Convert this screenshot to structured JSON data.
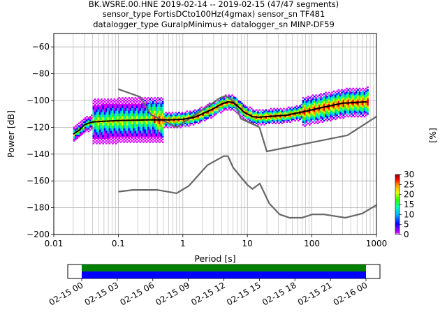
{
  "chart_data": [
    {
      "type": "heatmap",
      "title": [
        "BK.WSRE.00.HNE   2019-02-14 -- 2019-02-15  (47/47 segments)",
        "sensor_type FortisDCto100Hz(4gmax) sensor_sn TF481",
        "datalogger_type GuralpMinimus+ datalogger_sn MINP-DF59"
      ],
      "xlabel": "Period [s]",
      "ylabel": "Power [dB]",
      "xscale": "log",
      "xlim": [
        0.01,
        1000
      ],
      "ylim": [
        -200,
        -50
      ],
      "xticks": [
        0.01,
        0.1,
        1,
        10,
        100,
        1000
      ],
      "xtick_labels": [
        "0.01",
        "0.1",
        "1",
        "10",
        "100",
        "1000"
      ],
      "yticks": [
        -200,
        -180,
        -160,
        -140,
        -120,
        -100,
        -80,
        -60
      ],
      "ytick_labels": [
        "−200",
        "−180",
        "−160",
        "−140",
        "−120",
        "−100",
        "−80",
        "−60"
      ],
      "grid": true,
      "colorbar": {
        "label": "[%]",
        "range": [
          0,
          30
        ],
        "ticks": [
          0,
          5,
          10,
          15,
          20,
          25,
          30
        ],
        "tick_labels": [
          "0",
          "5",
          "10",
          "15",
          "20",
          "25",
          "30"
        ],
        "colormap": [
          "#ffffff",
          "#d400ff",
          "#0000ff",
          "#00b4ff",
          "#00ffb0",
          "#33ff00",
          "#e6ff00",
          "#ff9900",
          "#ff0000",
          "#8b0000"
        ]
      },
      "series": [
        {
          "role": "model-high",
          "color": "#666666",
          "x": [
            0.1,
            0.22,
            0.32,
            0.8,
            3.8,
            4.6,
            6.3,
            7.9,
            15.4,
            20,
            354.8,
            1000
          ],
          "y": [
            -91.5,
            -97.4,
            -110.5,
            -120,
            -98,
            -96.5,
            -101,
            -113.5,
            -120,
            -138,
            -126,
            -112
          ]
        },
        {
          "role": "model-low",
          "color": "#666666",
          "x": [
            0.1,
            0.17,
            0.4,
            0.8,
            1.24,
            2.4,
            4.3,
            5,
            6,
            10,
            12,
            15.6,
            21.9,
            31.6,
            45,
            70,
            101,
            154,
            328,
            600,
            1000
          ],
          "y": [
            -168,
            -166.7,
            -166.7,
            -169.2,
            -163.7,
            -148.3,
            -141.5,
            -141.5,
            -150,
            -163,
            -166,
            -162,
            -177,
            -185,
            -187.5,
            -187.5,
            -185,
            -185,
            -187.5,
            -184.4,
            -178
          ]
        },
        {
          "role": "mode",
          "color": "#000000",
          "x": [
            0.02,
            0.025,
            0.03,
            0.04,
            0.06,
            0.1,
            0.15,
            0.3,
            0.6,
            1,
            1.5,
            2,
            3,
            4,
            5,
            6,
            7,
            9,
            12,
            15,
            20,
            40,
            80,
            150,
            300,
            700
          ],
          "y": [
            -125,
            -122,
            -118,
            -116,
            -115.5,
            -115,
            -114.8,
            -114.5,
            -114.5,
            -114,
            -112.5,
            -110,
            -106,
            -102.5,
            -101,
            -101.5,
            -104,
            -109,
            -112,
            -112.5,
            -112,
            -111,
            -108,
            -105,
            -102,
            -101
          ]
        }
      ]
    },
    {
      "type": "timeline",
      "xlim": [
        "02-15 00",
        "02-16 00"
      ],
      "tick_labels": [
        "02-15 00",
        "02-15 03",
        "02-15 06",
        "02-15 09",
        "02-15 12",
        "02-15 15",
        "02-15 18",
        "02-15 21",
        "02-16 00"
      ],
      "bars": [
        {
          "color": "#008000",
          "start": "02-15 00",
          "end": "02-16 00"
        },
        {
          "color": "#0000ff",
          "start": "02-15 00",
          "end": "02-16 00"
        }
      ]
    }
  ]
}
